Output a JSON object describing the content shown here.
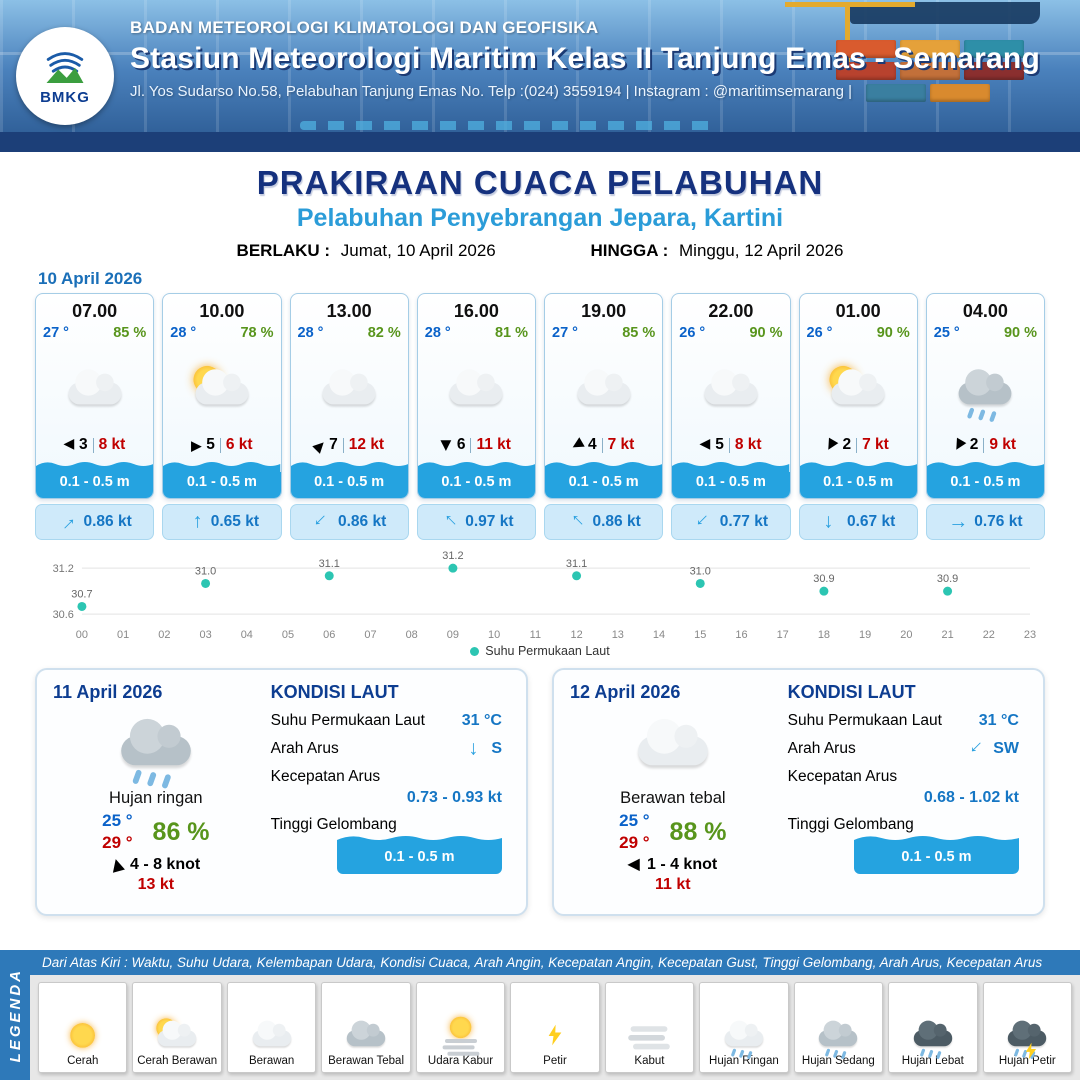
{
  "header": {
    "agency": "BADAN METEOROLOGI KLIMATOLOGI DAN GEOFISIKA",
    "station": "Stasiun Meteorologi Maritim Kelas II Tanjung Emas - Semarang",
    "address": "Jl. Yos Sudarso No.58, Pelabuhan Tanjung Emas No. Telp :(024) 3559194 | Instagram : @maritimsemarang |",
    "logo_text": "BMKG"
  },
  "title": {
    "main": "PRAKIRAAN CUACA PELABUHAN",
    "sub": "Pelabuhan Penyebrangan Jepara, Kartini",
    "berlaku_label": "BERLAKU :",
    "berlaku_value": "Jumat, 10 April 2026",
    "hingga_label": "HINGGA :",
    "hingga_value": "Minggu, 12 April 2026"
  },
  "glyphs": {
    "wind_arrow": "▶",
    "current_arrow": "→"
  },
  "forecast": {
    "date": "10 April 2026",
    "cards": [
      {
        "time": "07.00",
        "temp": "27 °",
        "humidity": "85 %",
        "icon": "cloud",
        "wind_deg": 180,
        "wind": "3",
        "gust": "8 kt",
        "wave": "0.1 - 0.5 m",
        "current_deg": -45,
        "current": "0.86 kt"
      },
      {
        "time": "10.00",
        "temp": "28 °",
        "humidity": "78 %",
        "icon": "sun cloud",
        "wind_deg": 0,
        "wind": "5",
        "gust": "6 kt",
        "wave": "0.1 - 0.5 m",
        "current_deg": -90,
        "current": "0.65 kt"
      },
      {
        "time": "13.00",
        "temp": "28 °",
        "humidity": "82 %",
        "icon": "cloud",
        "wind_deg": -45,
        "wind": "7",
        "gust": "12 kt",
        "wave": "0.1 - 0.5 m",
        "current_deg": 135,
        "current": "0.86 kt"
      },
      {
        "time": "16.00",
        "temp": "28 °",
        "humidity": "81 %",
        "icon": "cloud",
        "wind_deg": 90,
        "wind": "6",
        "gust": "11 kt",
        "wave": "0.1 - 0.5 m",
        "current_deg": -135,
        "current": "0.97 kt"
      },
      {
        "time": "19.00",
        "temp": "27 °",
        "humidity": "85 %",
        "icon": "cloud",
        "wind_deg": 150,
        "wind": "4",
        "gust": "7 kt",
        "wave": "0.1 - 0.5 m",
        "current_deg": -135,
        "current": "0.86 kt"
      },
      {
        "time": "22.00",
        "temp": "26 °",
        "humidity": "90 %",
        "icon": "cloud",
        "wind_deg": 180,
        "wind": "5",
        "gust": "8 kt",
        "wave": "0.1 - 0.5 m",
        "current_deg": 135,
        "current": "0.77 kt"
      },
      {
        "time": "01.00",
        "temp": "26 °",
        "humidity": "90 %",
        "icon": "sun cloud",
        "wind_deg": 120,
        "wind": "2",
        "gust": "7 kt",
        "wave": "0.1 - 0.5 m",
        "current_deg": 90,
        "current": "0.67 kt"
      },
      {
        "time": "04.00",
        "temp": "25 °",
        "humidity": "90 %",
        "icon": "cloud dark rain",
        "wind_deg": 120,
        "wind": "2",
        "gust": "9 kt",
        "wave": "0.1 - 0.5 m",
        "current_deg": 0,
        "current": "0.76 kt"
      }
    ]
  },
  "chart_data": {
    "type": "scatter",
    "legend": "Suhu Permukaan Laut",
    "x": [
      0,
      3,
      6,
      9,
      12,
      15,
      18,
      21
    ],
    "values": [
      30.7,
      31.0,
      31.1,
      31.2,
      31.1,
      31.0,
      30.9,
      30.9
    ],
    "x_tick_labels": [
      "00",
      "01",
      "02",
      "03",
      "04",
      "05",
      "06",
      "07",
      "08",
      "09",
      "10",
      "11",
      "12",
      "13",
      "14",
      "15",
      "16",
      "17",
      "18",
      "19",
      "20",
      "21",
      "22",
      "23"
    ],
    "y_ticks": [
      31.2,
      30.6
    ],
    "axis_range": [
      30.55,
      31.28
    ],
    "ylabel": "",
    "xlabel": "",
    "grid": true,
    "legend_position": "bottom",
    "point_color": "#2cc5b2"
  },
  "daily": [
    {
      "date": "11 April 2026",
      "icon": "cloud dark rain",
      "condition": "Hujan ringan",
      "temp_day": "25 °",
      "temp_night": "29 °",
      "humidity": "86 %",
      "wind_deg": -105,
      "wind_range": "4 - 8 knot",
      "gust": "13 kt",
      "sea": {
        "title": "KONDISI LAUT",
        "sst_label": "Suhu Permukaan Laut",
        "sst": "31 °C",
        "dir_label": "Arah Arus",
        "dir": "S",
        "dir_deg": 90,
        "speed_label": "Kecepatan Arus",
        "speed": "0.73 - 0.93 kt",
        "wave_label": "Tinggi Gelombang",
        "wave": "0.1 - 0.5 m"
      }
    },
    {
      "date": "12 April 2026",
      "icon": "cloud",
      "condition": "Berawan tebal",
      "temp_day": "25 °",
      "temp_night": "29 °",
      "humidity": "88 %",
      "wind_deg": 180,
      "wind_range": "1 - 4 knot",
      "gust": "11 kt",
      "sea": {
        "title": "KONDISI LAUT",
        "sst_label": "Suhu Permukaan Laut",
        "sst": "31 °C",
        "dir_label": "Arah Arus",
        "dir": "SW",
        "dir_deg": 135,
        "speed_label": "Kecepatan Arus",
        "speed": "0.68 - 1.02 kt",
        "wave_label": "Tinggi Gelombang",
        "wave": "0.1 - 0.5 m"
      }
    }
  ],
  "legend": {
    "band": "LEGENDA",
    "strip": "Dari Atas Kiri : Waktu, Suhu Udara, Kelembapan Udara, Kondisi Cuaca, Arah Angin, Kecepatan Angin, Kecepatan Gust, Tinggi Gelombang, Arah Arus, Kecepatan Arus",
    "items": [
      {
        "label": "Cerah",
        "icon": "sun solo"
      },
      {
        "label": "Cerah Berawan",
        "icon": "sun cloud"
      },
      {
        "label": "Berawan",
        "icon": "cloud"
      },
      {
        "label": "Berawan Tebal",
        "icon": "cloud dark"
      },
      {
        "label": "Udara Kabur",
        "icon": "sun haze"
      },
      {
        "label": "Petir",
        "icon": "bolt"
      },
      {
        "label": "Kabut",
        "icon": "fog"
      },
      {
        "label": "Hujan Ringan",
        "icon": "cloud rain"
      },
      {
        "label": "Hujan Sedang",
        "icon": "cloud dark rain"
      },
      {
        "label": "Hujan Lebat",
        "icon": "cloud darker rain"
      },
      {
        "label": "Hujan Petir",
        "icon": "cloud darker rain bolt"
      }
    ]
  }
}
